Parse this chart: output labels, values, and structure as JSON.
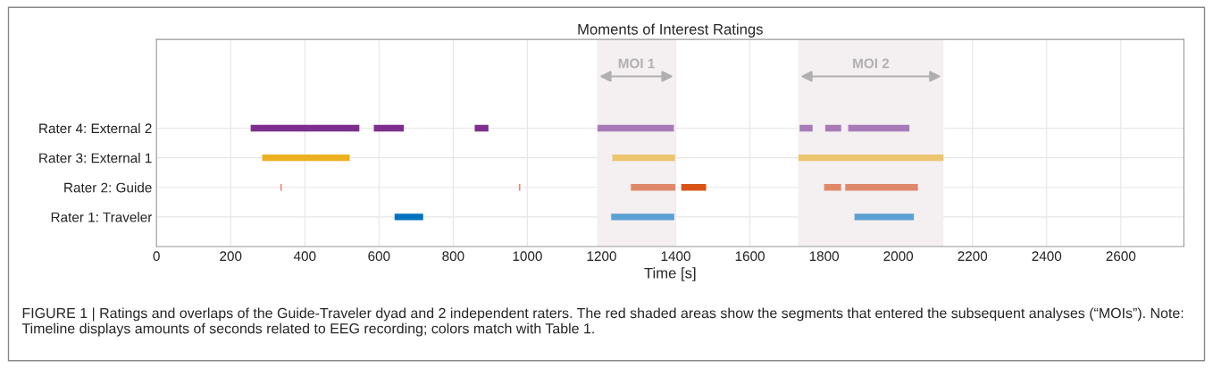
{
  "chart_data": {
    "type": "bar",
    "orientation": "horizontal",
    "title": "Moments of Interest Ratings",
    "xlabel": "Time [s]",
    "categories": [
      "Rater 4: External 2",
      "Rater 3: External 1",
      "Rater 2: Guide",
      "Rater 1: Traveler"
    ],
    "xlim": [
      0,
      2770
    ],
    "xticks": [
      0,
      200,
      400,
      600,
      800,
      1000,
      1200,
      1400,
      1600,
      1800,
      2000,
      2200,
      2400,
      2600
    ],
    "grid": true,
    "legend": false,
    "series": [
      {
        "color": "#7e2f8e",
        "base": [
          254,
          null,
          null,
          null
        ],
        "values": [
          293,
          null,
          null,
          null
        ]
      },
      {
        "color": "#7e2f8e",
        "base": [
          586,
          null,
          null,
          null
        ],
        "values": [
          81,
          null,
          null,
          null
        ]
      },
      {
        "color": "#7e2f8e",
        "base": [
          858,
          null,
          null,
          null
        ],
        "values": [
          37,
          null,
          null,
          null
        ]
      },
      {
        "color": "#a87bb8",
        "base": [
          1189,
          null,
          null,
          null
        ],
        "values": [
          206,
          null,
          null,
          null
        ]
      },
      {
        "color": "#a87bb8",
        "base": [
          1734,
          null,
          null,
          null
        ],
        "values": [
          35,
          null,
          null,
          null
        ]
      },
      {
        "color": "#a87bb8",
        "base": [
          1803,
          null,
          null,
          null
        ],
        "values": [
          43,
          null,
          null,
          null
        ]
      },
      {
        "color": "#a87bb8",
        "base": [
          1865,
          null,
          null,
          null
        ],
        "values": [
          165,
          null,
          null,
          null
        ]
      },
      {
        "color": "#edb120",
        "base": [
          null,
          285,
          null,
          null
        ],
        "values": [
          null,
          236,
          null,
          null
        ]
      },
      {
        "color": "#ecc56e",
        "base": [
          null,
          1229,
          null,
          null
        ],
        "values": [
          null,
          169,
          null,
          null
        ]
      },
      {
        "color": "#ecc56e",
        "base": [
          null,
          1731,
          null,
          null
        ],
        "values": [
          null,
          391,
          null,
          null
        ]
      },
      {
        "color": "#e0896a",
        "base": [
          null,
          null,
          334,
          null
        ],
        "values": [
          null,
          null,
          4,
          null
        ]
      },
      {
        "color": "#e0896a",
        "base": [
          null,
          null,
          977,
          null
        ],
        "values": [
          null,
          null,
          4,
          null
        ]
      },
      {
        "color": "#e0896a",
        "base": [
          null,
          null,
          1279,
          null
        ],
        "values": [
          null,
          null,
          120,
          null
        ]
      },
      {
        "color": "#d95319",
        "base": [
          null,
          null,
          1415,
          null
        ],
        "values": [
          null,
          null,
          67,
          null
        ]
      },
      {
        "color": "#e0896a",
        "base": [
          null,
          null,
          1800,
          null
        ],
        "values": [
          null,
          null,
          46,
          null
        ]
      },
      {
        "color": "#e0896a",
        "base": [
          null,
          null,
          1857,
          null
        ],
        "values": [
          null,
          null,
          196,
          null
        ]
      },
      {
        "color": "#0072bd",
        "base": [
          null,
          null,
          null,
          642
        ],
        "values": [
          null,
          null,
          null,
          77
        ]
      },
      {
        "color": "#5ca0d3",
        "base": [
          null,
          null,
          null,
          1226
        ],
        "values": [
          null,
          null,
          null,
          170
        ]
      },
      {
        "color": "#5ca0d3",
        "base": [
          null,
          null,
          null,
          1882
        ],
        "values": [
          null,
          null,
          null,
          160
        ]
      }
    ],
    "bands": [
      {
        "axis": "x",
        "from": 1188,
        "to": 1400,
        "label": "MOI 1",
        "color": "#f4eff0"
      },
      {
        "axis": "x",
        "from": 1730,
        "to": 2122,
        "label": "MOI 2",
        "color": "#f4eff0"
      }
    ],
    "annotations": [
      "FIGURE 1 | Ratings and overlaps of the Guide-Traveler dyad and 2 independent raters. The red shaded areas show the segments that entered the subsequent analyses (“MOIs”). Note: Timeline displays amounts of seconds related to EEG recording; colors match with Table 1."
    ]
  }
}
